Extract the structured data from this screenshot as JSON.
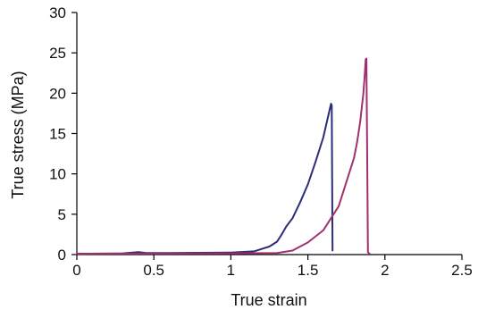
{
  "chart_data": {
    "type": "line",
    "title": "",
    "xlabel": "True strain",
    "ylabel": "True stress (MPa)",
    "xlim": [
      0,
      2.5
    ],
    "ylim": [
      0,
      30
    ],
    "x_ticks": [
      "0",
      "0.5",
      "1",
      "1.5",
      "2",
      "2.5"
    ],
    "y_ticks": [
      "0",
      "5",
      "10",
      "15",
      "20",
      "25",
      "30"
    ],
    "grid": false,
    "legend": "none",
    "series": [
      {
        "color": "#2b2d7a",
        "x": [
          0.0,
          0.3,
          0.4,
          0.45,
          0.6,
          1.0,
          1.15,
          1.2,
          1.25,
          1.3,
          1.33,
          1.36,
          1.4,
          1.45,
          1.5,
          1.55,
          1.6,
          1.63,
          1.65,
          1.655,
          1.66
        ],
        "y": [
          0.1,
          0.15,
          0.3,
          0.2,
          0.2,
          0.25,
          0.4,
          0.7,
          1.0,
          1.6,
          2.5,
          3.5,
          4.5,
          6.5,
          8.7,
          11.5,
          14.5,
          17.0,
          18.7,
          18.5,
          0.5
        ]
      },
      {
        "color": "#a0306e",
        "x": [
          0.0,
          1.0,
          1.3,
          1.4,
          1.5,
          1.6,
          1.7,
          1.75,
          1.8,
          1.82,
          1.84,
          1.86,
          1.87,
          1.875,
          1.88,
          1.885,
          1.89,
          1.9
        ],
        "y": [
          0.1,
          0.15,
          0.2,
          0.5,
          1.5,
          3.0,
          6.0,
          9.0,
          12.0,
          14.0,
          16.5,
          20.0,
          22.5,
          24.2,
          24.3,
          12.0,
          0.3,
          0.1
        ]
      }
    ]
  }
}
